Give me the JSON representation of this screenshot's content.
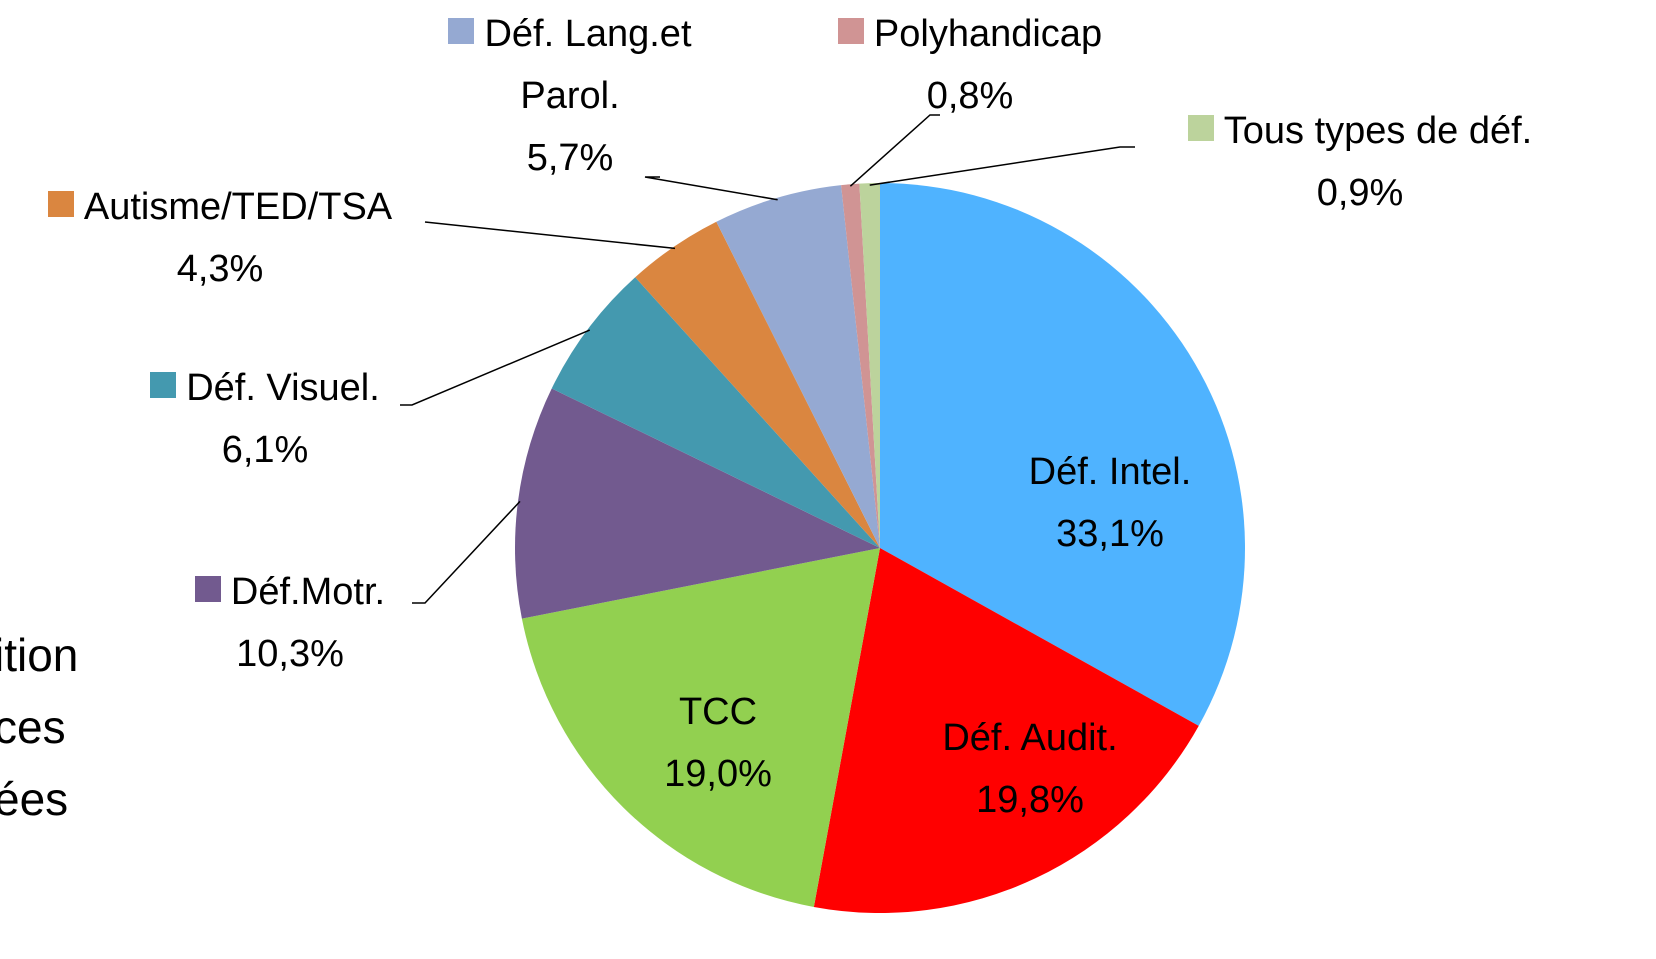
{
  "chart_data": {
    "type": "pie",
    "categories": [
      "Déf. Intel.",
      "Déf. Audit.",
      "TCC",
      "Déf.Motr.",
      "Déf. Visuel.",
      "Autisme/TED/TSA",
      "Déf. Lang.et Parol.",
      "Polyhandicap",
      "Tous types de déf."
    ],
    "values": [
      33.1,
      19.8,
      19.0,
      10.3,
      6.1,
      4.3,
      5.7,
      0.8,
      0.9
    ],
    "value_labels": [
      "33,1%",
      "19,8%",
      "19,0%",
      "10,3%",
      "6,1%",
      "4,3%",
      "5,7%",
      "0,8%",
      "0,9%"
    ],
    "colors": [
      "#4fb3ff",
      "#ff0000",
      "#92d050",
      "#725a8f",
      "#4499af",
      "#da8640",
      "#95a9d2",
      "#d09494",
      "#bcd39c"
    ]
  },
  "fragments": [
    "ition",
    "ces",
    "ées"
  ]
}
